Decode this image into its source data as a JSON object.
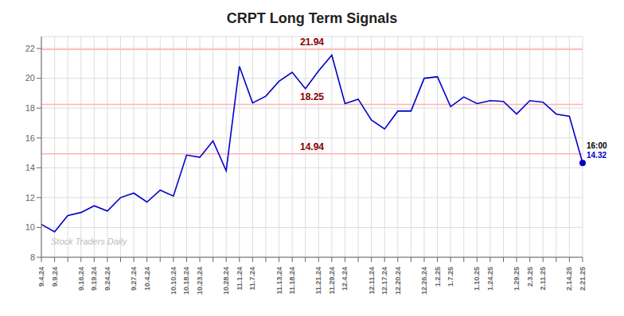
{
  "chart_data": {
    "type": "line",
    "title": "CRPT Long Term Signals",
    "categories": [
      "9.4.24",
      "9.9.24",
      null,
      "9.16.24",
      "9.19.24",
      "9.24.24",
      null,
      "9.27.24",
      "10.4.24",
      null,
      "10.10.24",
      "10.18.24",
      "10.23.24",
      null,
      "10.28.24",
      "11.1.24",
      "11.7.24",
      null,
      "11.13.24",
      "11.18.24",
      null,
      "11.21.24",
      "11.29.24",
      "12.4.24",
      null,
      "12.11.24",
      "12.17.24",
      "12.20.24",
      null,
      "12.26.24",
      "1.2.25",
      "1.7.25",
      null,
      "1.10.25",
      "1.24.25",
      null,
      "1.29.25",
      "2.3.25",
      "2.11.25",
      null,
      "2.14.25",
      "2.21.25"
    ],
    "values": [
      10.2,
      9.7,
      10.8,
      11.0,
      11.45,
      11.1,
      12.0,
      12.3,
      11.7,
      12.5,
      12.1,
      14.85,
      14.7,
      15.8,
      13.8,
      20.8,
      18.35,
      18.8,
      19.8,
      20.4,
      19.3,
      20.5,
      21.55,
      18.3,
      18.6,
      17.2,
      16.6,
      17.8,
      17.8,
      20.0,
      20.1,
      18.1,
      18.75,
      18.3,
      18.5,
      18.45,
      17.6,
      18.5,
      18.4,
      17.6,
      17.45,
      14.32
    ],
    "color": "#0000CC",
    "ylim": [
      8,
      22.8
    ],
    "yticks": [
      8,
      10,
      12,
      14,
      16,
      18,
      20,
      22
    ],
    "grid": true,
    "reference_lines": [
      {
        "value": 21.94,
        "label": "21.94",
        "color": "#ffb3b3"
      },
      {
        "value": 18.25,
        "label": "18.25",
        "color": "#ffb3b3"
      },
      {
        "value": 14.94,
        "label": "14.94",
        "color": "#ffb3b3"
      }
    ],
    "annotations": [
      {
        "text": "16:00",
        "index": 41,
        "color": "#000000"
      },
      {
        "text": "14.32",
        "index": 41,
        "color": "#0000CC"
      },
      {
        "text": "Stock Traders Daily",
        "color": "#bbbbbb"
      }
    ]
  }
}
